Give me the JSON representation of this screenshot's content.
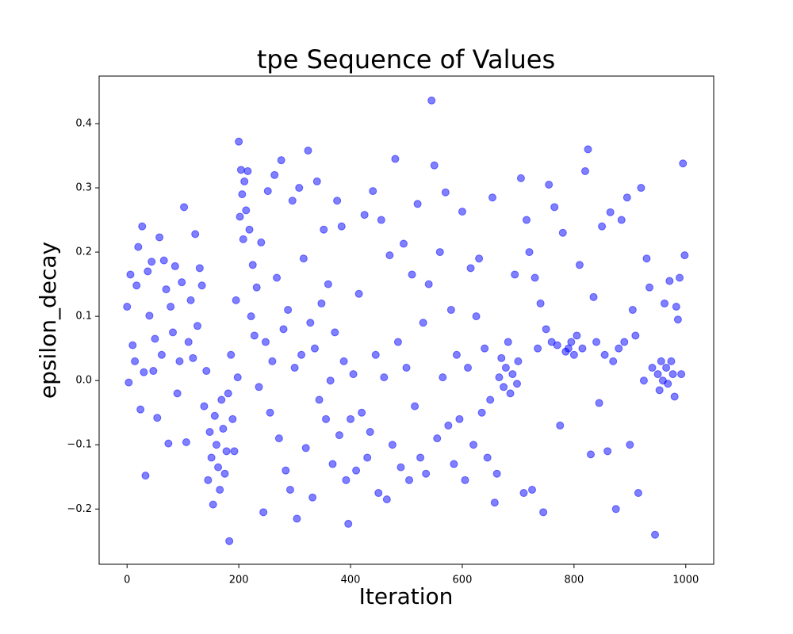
{
  "chart_data": {
    "type": "scatter",
    "title": "tpe Sequence of Values",
    "x_label": "Iteration",
    "y_label": "epsilon_decay",
    "color": "#0000ff",
    "xlim": [
      -50,
      1050
    ],
    "ylim": [
      -0.286,
      0.474
    ],
    "xticks": [
      0,
      200,
      400,
      600,
      800,
      1000
    ],
    "yticks": [
      {
        "value": -0.2,
        "label": "−0.2"
      },
      {
        "value": -0.1,
        "label": "−0.1"
      },
      {
        "value": 0,
        "label": "0.0"
      },
      0.1,
      0.2,
      0.3,
      0.4
    ],
    "series": [
      {
        "name": "epsilon_decay",
        "x": [
          0,
          3,
          6,
          10,
          14,
          17,
          20,
          24,
          27,
          30,
          33,
          37,
          40,
          44,
          47,
          50,
          54,
          58,
          62,
          66,
          70,
          74,
          78,
          82,
          86,
          90,
          94,
          98,
          102,
          106,
          110,
          114,
          118,
          122,
          126,
          130,
          134,
          138,
          142,
          145,
          148,
          151,
          154,
          157,
          160,
          163,
          166,
          169,
          172,
          175,
          178,
          181,
          183,
          186,
          189,
          192,
          195,
          198,
          200,
          202,
          204,
          206,
          208,
          210,
          213,
          216,
          219,
          222,
          225,
          228,
          232,
          236,
          240,
          244,
          248,
          252,
          256,
          260,
          264,
          268,
          272,
          276,
          280,
          284,
          288,
          292,
          296,
          300,
          304,
          308,
          312,
          316,
          320,
          324,
          328,
          332,
          336,
          340,
          344,
          348,
          352,
          356,
          360,
          364,
          368,
          372,
          376,
          380,
          384,
          388,
          392,
          396,
          400,
          405,
          410,
          415,
          420,
          425,
          430,
          435,
          440,
          445,
          450,
          455,
          460,
          465,
          470,
          475,
          480,
          485,
          490,
          495,
          500,
          505,
          510,
          515,
          520,
          525,
          530,
          535,
          540,
          545,
          550,
          555,
          560,
          565,
          570,
          575,
          580,
          585,
          590,
          595,
          600,
          605,
          610,
          615,
          620,
          625,
          630,
          635,
          640,
          645,
          650,
          654,
          658,
          662,
          666,
          670,
          674,
          678,
          682,
          686,
          690,
          694,
          698,
          700,
          705,
          710,
          715,
          720,
          725,
          730,
          735,
          740,
          745,
          750,
          755,
          760,
          765,
          770,
          775,
          780,
          785,
          790,
          795,
          800,
          805,
          810,
          815,
          820,
          825,
          830,
          835,
          840,
          845,
          850,
          855,
          860,
          865,
          870,
          875,
          880,
          885,
          890,
          895,
          900,
          905,
          910,
          915,
          920,
          925,
          930,
          935,
          940,
          945,
          950,
          953,
          956,
          959,
          962,
          965,
          968,
          971,
          974,
          977,
          980,
          983,
          986,
          989,
          992,
          995,
          998
        ],
        "values": [
          0.115,
          -0.003,
          0.165,
          0.055,
          0.03,
          0.148,
          0.208,
          -0.045,
          0.24,
          0.013,
          -0.148,
          0.17,
          0.101,
          0.185,
          0.015,
          0.065,
          -0.058,
          0.223,
          0.04,
          0.187,
          0.142,
          -0.098,
          0.115,
          0.075,
          0.178,
          -0.02,
          0.03,
          0.153,
          0.27,
          -0.096,
          0.06,
          0.125,
          0.035,
          0.228,
          0.085,
          0.175,
          0.148,
          -0.04,
          0.015,
          -0.155,
          -0.08,
          -0.12,
          -0.193,
          -0.055,
          -0.1,
          -0.135,
          -0.17,
          -0.03,
          -0.075,
          -0.145,
          -0.11,
          -0.02,
          -0.25,
          0.04,
          -0.06,
          -0.11,
          0.125,
          0.005,
          0.372,
          0.255,
          0.328,
          0.29,
          0.22,
          0.31,
          0.265,
          0.326,
          0.235,
          0.1,
          0.18,
          0.07,
          0.145,
          -0.01,
          0.215,
          -0.205,
          0.06,
          0.295,
          -0.05,
          0.03,
          0.32,
          0.16,
          -0.09,
          0.343,
          0.08,
          -0.14,
          0.11,
          -0.17,
          0.28,
          0.02,
          -0.215,
          0.3,
          0.04,
          0.19,
          -0.105,
          0.358,
          0.09,
          -0.182,
          0.05,
          0.31,
          -0.03,
          0.12,
          0.235,
          -0.06,
          0.15,
          0.0,
          -0.13,
          0.075,
          0.28,
          -0.085,
          0.24,
          0.03,
          -0.155,
          -0.223,
          -0.06,
          0.01,
          -0.14,
          0.135,
          -0.05,
          0.258,
          -0.12,
          -0.08,
          0.295,
          0.04,
          -0.175,
          0.25,
          0.005,
          -0.185,
          0.195,
          -0.1,
          0.345,
          0.06,
          -0.135,
          0.213,
          0.02,
          -0.155,
          0.165,
          -0.04,
          0.275,
          -0.12,
          0.09,
          -0.145,
          0.15,
          0.436,
          0.335,
          -0.09,
          0.2,
          0.005,
          0.293,
          -0.07,
          0.11,
          -0.13,
          0.04,
          -0.06,
          0.263,
          -0.155,
          0.02,
          0.175,
          -0.1,
          0.1,
          0.19,
          -0.05,
          0.05,
          -0.12,
          -0.03,
          0.285,
          -0.19,
          -0.145,
          0.005,
          0.035,
          -0.01,
          0.02,
          0.06,
          -0.02,
          0.01,
          0.165,
          -0.005,
          0.03,
          0.315,
          -0.175,
          0.25,
          0.2,
          -0.17,
          0.16,
          0.05,
          0.12,
          -0.205,
          0.08,
          0.305,
          0.06,
          0.27,
          0.055,
          -0.07,
          0.23,
          0.045,
          0.05,
          0.06,
          0.04,
          0.07,
          0.18,
          0.05,
          0.326,
          0.36,
          -0.115,
          0.13,
          0.06,
          -0.035,
          0.24,
          0.04,
          -0.11,
          0.262,
          0.03,
          -0.2,
          0.05,
          0.25,
          0.06,
          0.285,
          -0.1,
          0.11,
          0.07,
          -0.175,
          0.3,
          0.0,
          0.19,
          0.145,
          0.02,
          -0.24,
          0.01,
          -0.015,
          0.03,
          0.0,
          0.12,
          0.02,
          -0.005,
          0.155,
          0.03,
          0.01,
          -0.025,
          0.115,
          0.095,
          0.16,
          0.01,
          0.338,
          0.195
        ]
      }
    ]
  }
}
